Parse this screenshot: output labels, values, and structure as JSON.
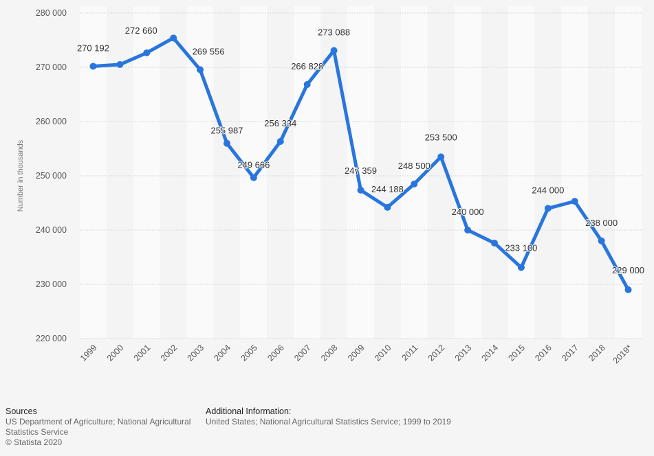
{
  "chart_data": {
    "type": "line",
    "title": "",
    "xlabel": "",
    "ylabel": "Number in thousands",
    "ylim": [
      220000,
      280000
    ],
    "yticks": [
      220000,
      230000,
      240000,
      250000,
      260000,
      270000,
      280000
    ],
    "ytick_labels": [
      "220 000",
      "230 000",
      "240 000",
      "250 000",
      "260 000",
      "270 000",
      "280 000"
    ],
    "grid": true,
    "categories": [
      "1999",
      "2000",
      "2001",
      "2002",
      "2003",
      "2004",
      "2005",
      "2006",
      "2007",
      "2008",
      "2009",
      "2010",
      "2011",
      "2012",
      "2013",
      "2014",
      "2015",
      "2016",
      "2017",
      "2018",
      "2019*"
    ],
    "series": [
      {
        "values": [
          270192,
          270500,
          272660,
          275400,
          269556,
          255987,
          249666,
          256334,
          266828,
          273088,
          247359,
          244188,
          248500,
          253500,
          240000,
          237600,
          233100,
          244000,
          245300,
          238000,
          229000
        ],
        "labels": [
          "270 192",
          "",
          "272 660",
          "",
          "269 556",
          "255 987",
          "249 666",
          "256 334",
          "266 828",
          "273 088",
          "247 359",
          "244 188",
          "248 500",
          "253 500",
          "240 000",
          "",
          "233 100",
          "244 000",
          "",
          "238 000",
          "229 000"
        ],
        "color": "#2876dd"
      }
    ]
  },
  "footer": {
    "sources_heading": "Sources",
    "sources_text": "US Department of Agriculture; National Agricultural Statistics Service",
    "copyright": "© Statista 2020",
    "additional_heading": "Additional Information:",
    "additional_text": "United States; National Agricultural Statistics Service; 1999 to 2019"
  }
}
